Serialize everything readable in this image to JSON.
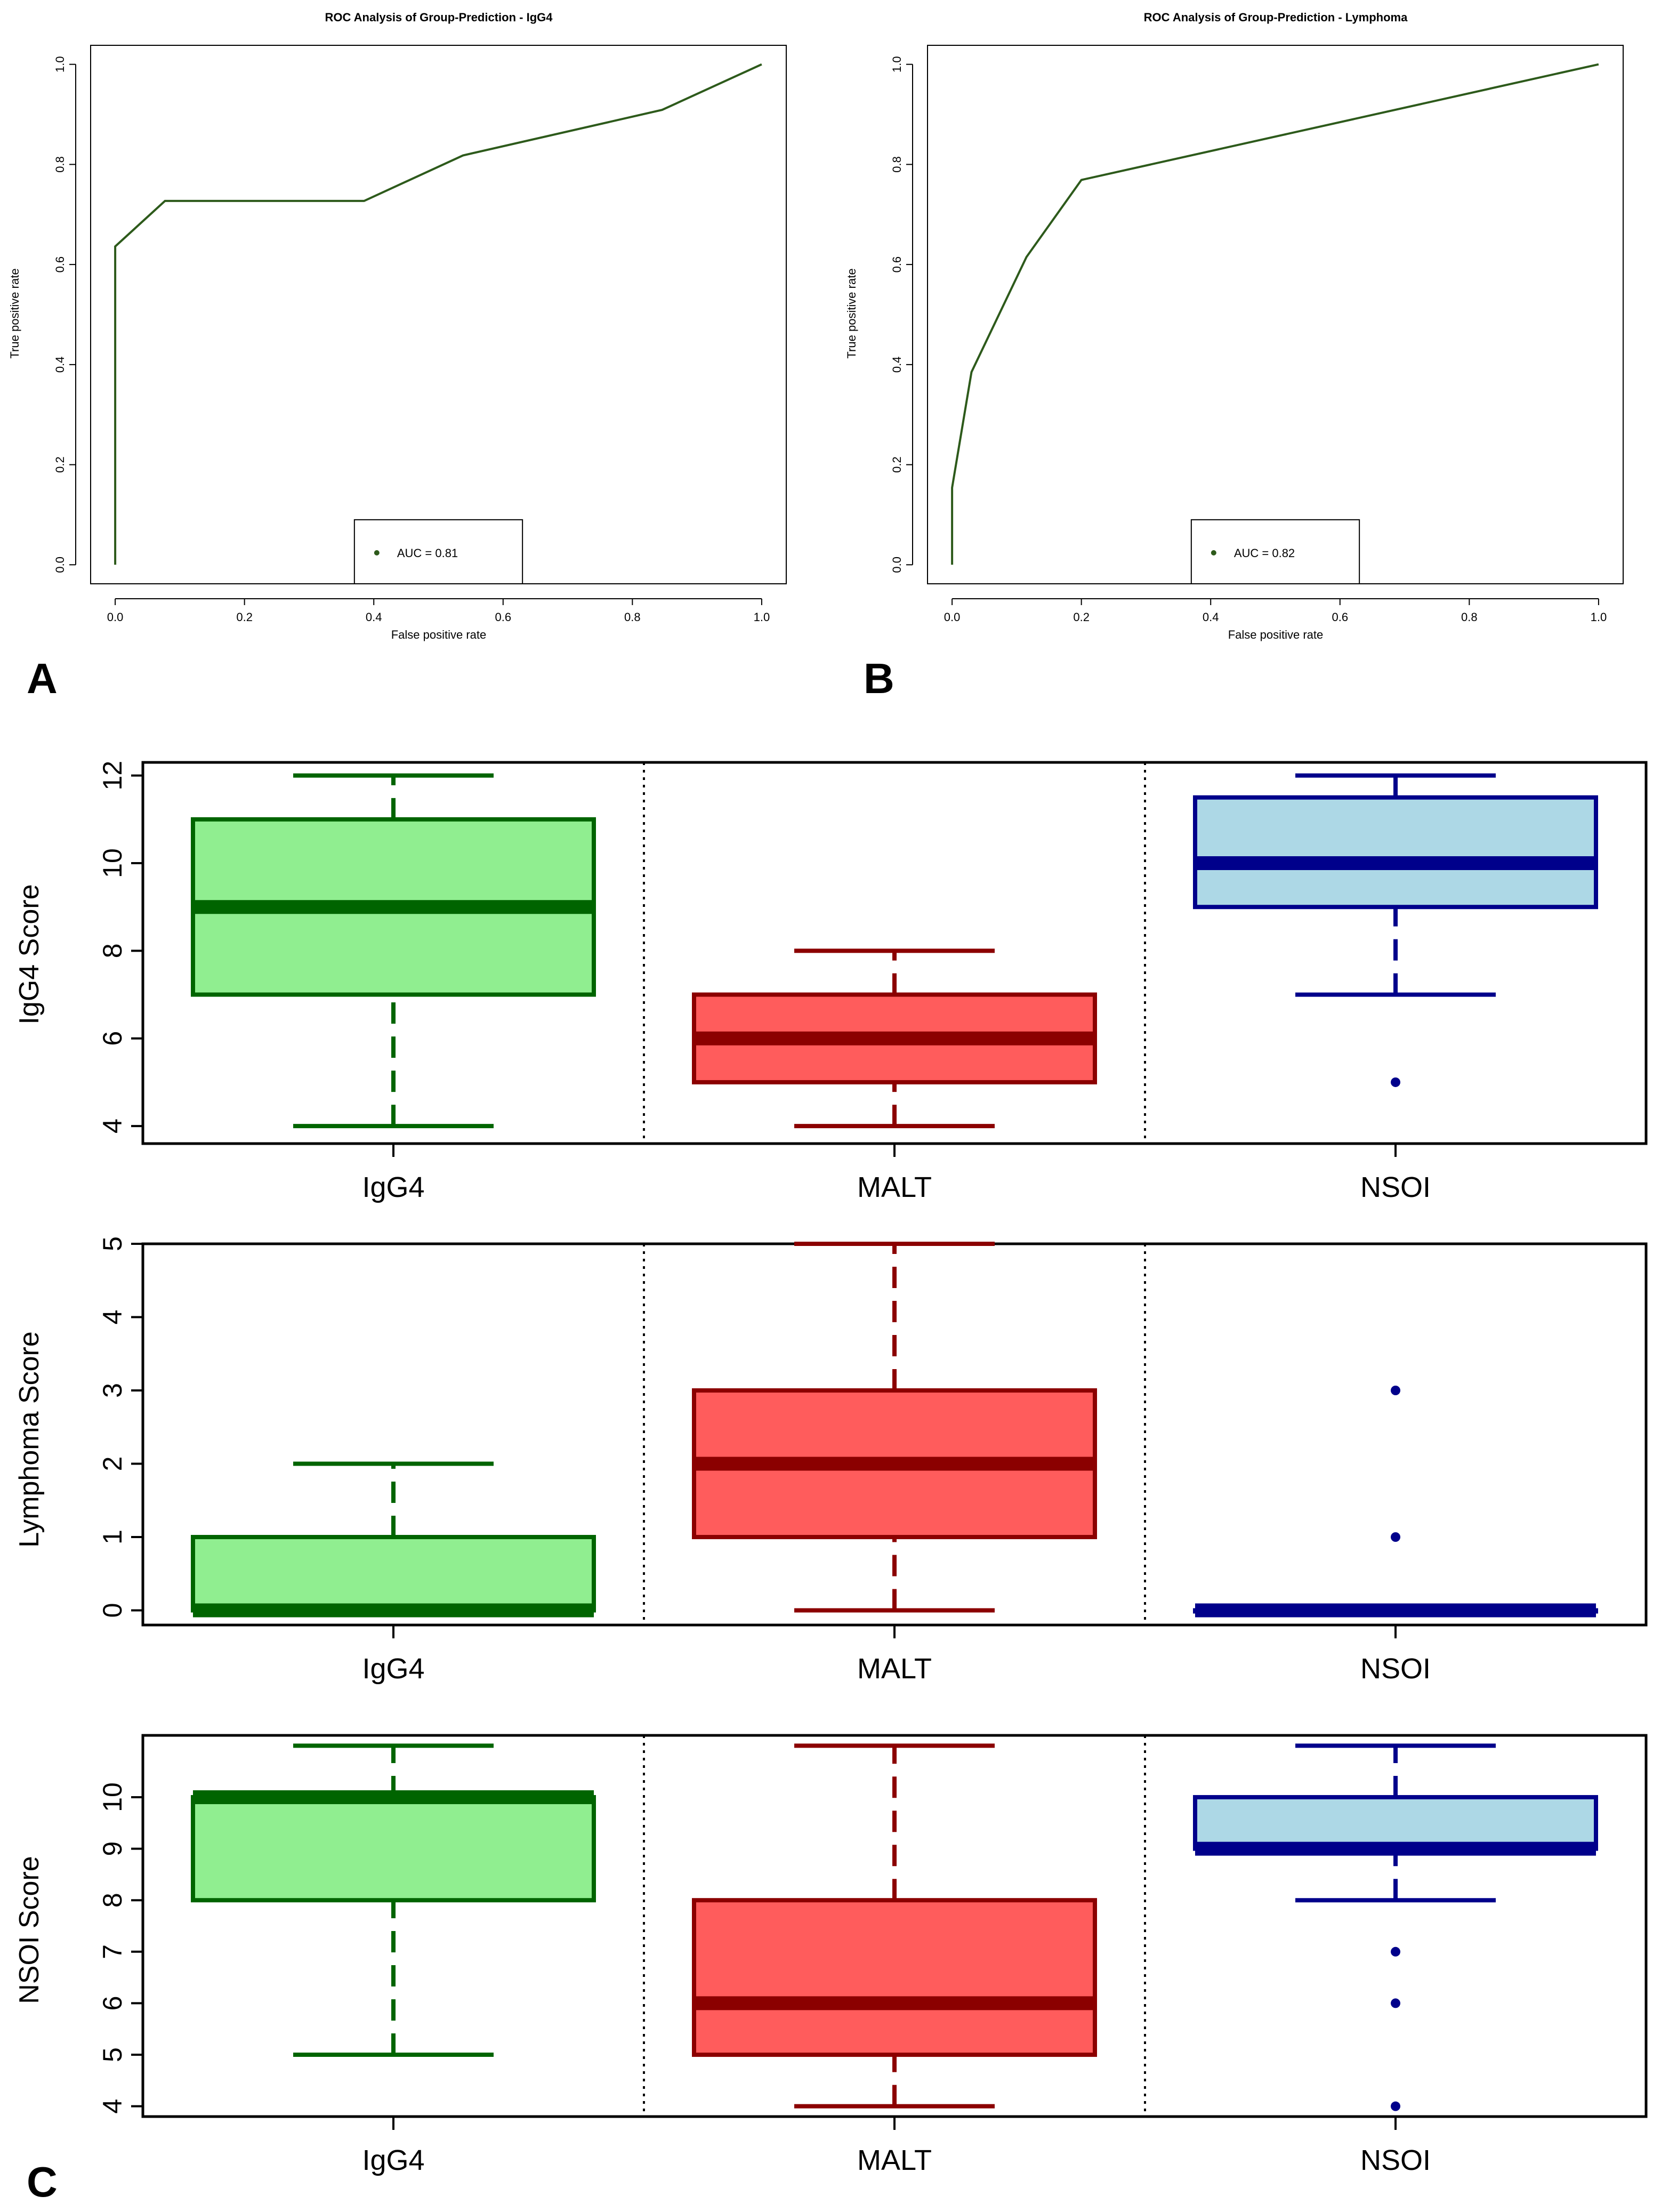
{
  "panel_labels": {
    "a": "A",
    "b": "B",
    "c": "C"
  },
  "colors": {
    "roc_line": "#2d5a1b",
    "igg4_fill": "#90ee90",
    "igg4_line": "#006400",
    "malt_fill": "#ff5c5c",
    "malt_line": "#8b0000",
    "nsoi_fill": "#add8e6",
    "nsoi_line": "#00008b"
  },
  "chart_data": [
    {
      "type": "line",
      "title": "ROC Analysis of Group-Prediction - IgG4",
      "xlabel": "False positive rate",
      "ylabel": "True positive rate",
      "xlim": [
        0,
        1
      ],
      "ylim": [
        0,
        1
      ],
      "ticks": [
        "0.0",
        "0.2",
        "0.4",
        "0.6",
        "0.8",
        "1.0"
      ],
      "series": [
        {
          "name": "ROC",
          "x": [
            0,
            0,
            0.077,
            0.385,
            0.538,
            0.846,
            1.0
          ],
          "y": [
            0,
            0.636,
            0.727,
            0.727,
            0.818,
            0.909,
            1.0
          ]
        }
      ],
      "legend": {
        "label": "AUC = 0.81",
        "position": "bottom-center"
      }
    },
    {
      "type": "line",
      "title": "ROC Analysis of Group-Prediction - Lymphoma",
      "xlabel": "False positive rate",
      "ylabel": "True positive rate",
      "xlim": [
        0,
        1
      ],
      "ylim": [
        0,
        1
      ],
      "ticks": [
        "0.0",
        "0.2",
        "0.4",
        "0.6",
        "0.8",
        "1.0"
      ],
      "series": [
        {
          "name": "ROC",
          "x": [
            0,
            0,
            0.03,
            0.115,
            0.2,
            1.0
          ],
          "y": [
            0,
            0.154,
            0.385,
            0.615,
            0.769,
            1.0
          ]
        }
      ],
      "legend": {
        "label": "AUC = 0.82",
        "position": "bottom-center"
      }
    },
    {
      "type": "box",
      "ylabel": "IgG4 Score",
      "categories": [
        "IgG4",
        "MALT",
        "NSOI"
      ],
      "ylim": [
        3.6,
        12.3
      ],
      "yticks": [
        "4",
        "6",
        "8",
        "10",
        "12"
      ],
      "boxes": [
        {
          "name": "IgG4",
          "min": 4,
          "q1": 7,
          "median": 9,
          "q3": 11,
          "max": 12,
          "outliers": []
        },
        {
          "name": "MALT",
          "min": 4,
          "q1": 5,
          "median": 6,
          "q3": 7,
          "max": 8,
          "outliers": []
        },
        {
          "name": "NSOI",
          "min": 7,
          "q1": 9,
          "median": 10,
          "q3": 11.5,
          "max": 12,
          "outliers": [
            5
          ]
        }
      ]
    },
    {
      "type": "box",
      "ylabel": "Lymphoma Score",
      "categories": [
        "IgG4",
        "MALT",
        "NSOI"
      ],
      "ylim": [
        -0.2,
        5.0
      ],
      "yticks": [
        "0",
        "1",
        "2",
        "3",
        "4",
        "5"
      ],
      "boxes": [
        {
          "name": "IgG4",
          "min": 0,
          "q1": 0,
          "median": 0,
          "q3": 1,
          "max": 2,
          "outliers": []
        },
        {
          "name": "MALT",
          "min": 0,
          "q1": 1,
          "median": 2,
          "q3": 3,
          "max": 5,
          "outliers": []
        },
        {
          "name": "NSOI",
          "min": 0,
          "q1": 0,
          "median": 0,
          "q3": 0,
          "max": 0,
          "outliers": [
            1,
            3
          ]
        }
      ]
    },
    {
      "type": "box",
      "ylabel": "NSOI Score",
      "categories": [
        "IgG4",
        "MALT",
        "NSOI"
      ],
      "ylim": [
        3.8,
        11.2
      ],
      "yticks": [
        "4",
        "5",
        "6",
        "7",
        "8",
        "9",
        "10"
      ],
      "boxes": [
        {
          "name": "IgG4",
          "min": 5,
          "q1": 8,
          "median": 10,
          "q3": 10,
          "max": 11,
          "outliers": []
        },
        {
          "name": "MALT",
          "min": 4,
          "q1": 5,
          "median": 6,
          "q3": 8,
          "max": 11,
          "outliers": []
        },
        {
          "name": "NSOI",
          "min": 8,
          "q1": 9,
          "median": 9,
          "q3": 10,
          "max": 11,
          "outliers": [
            4,
            6,
            7
          ]
        }
      ]
    }
  ]
}
